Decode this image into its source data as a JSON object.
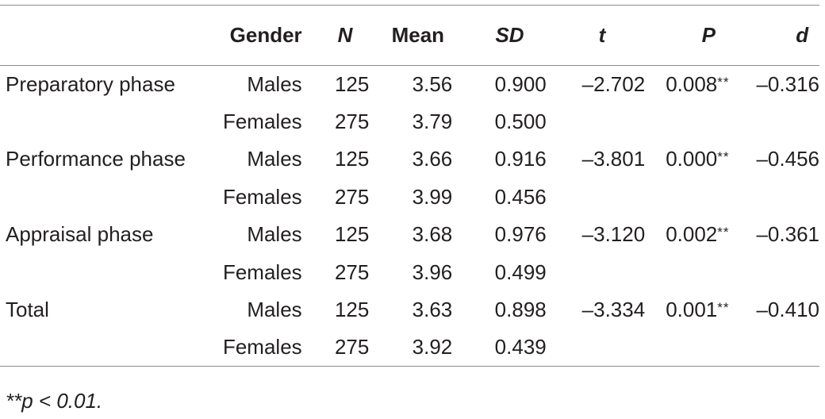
{
  "headers": {
    "label": "",
    "gender": "Gender",
    "n": "N",
    "mean": "Mean",
    "sd": "SD",
    "t": "t",
    "p": "P",
    "d": "d"
  },
  "rows": [
    {
      "label": "Preparatory phase",
      "gender": "Males",
      "n": "125",
      "mean": "3.56",
      "sd": "0.900",
      "t": "–2.702",
      "p": "0.008",
      "sig": "**",
      "d": "–0.316"
    },
    {
      "label": "",
      "gender": "Females",
      "n": "275",
      "mean": "3.79",
      "sd": "0.500",
      "t": "",
      "p": "",
      "sig": "",
      "d": ""
    },
    {
      "label": "Performance phase",
      "gender": "Males",
      "n": "125",
      "mean": "3.66",
      "sd": "0.916",
      "t": "–3.801",
      "p": "0.000",
      "sig": "**",
      "d": "–0.456"
    },
    {
      "label": "",
      "gender": "Females",
      "n": "275",
      "mean": "3.99",
      "sd": "0.456",
      "t": "",
      "p": "",
      "sig": "",
      "d": ""
    },
    {
      "label": "Appraisal phase",
      "gender": "Males",
      "n": "125",
      "mean": "3.68",
      "sd": "0.976",
      "t": "–3.120",
      "p": "0.002",
      "sig": "**",
      "d": "–0.361"
    },
    {
      "label": "",
      "gender": "Females",
      "n": "275",
      "mean": "3.96",
      "sd": "0.499",
      "t": "",
      "p": "",
      "sig": "",
      "d": ""
    },
    {
      "label": "Total",
      "gender": "Males",
      "n": "125",
      "mean": "3.63",
      "sd": "0.898",
      "t": "–3.334",
      "p": "0.001",
      "sig": "**",
      "d": "–0.410"
    },
    {
      "label": "",
      "gender": "Females",
      "n": "275",
      "mean": "3.92",
      "sd": "0.439",
      "t": "",
      "p": "",
      "sig": "",
      "d": ""
    }
  ],
  "footnote": "**p < 0.01."
}
